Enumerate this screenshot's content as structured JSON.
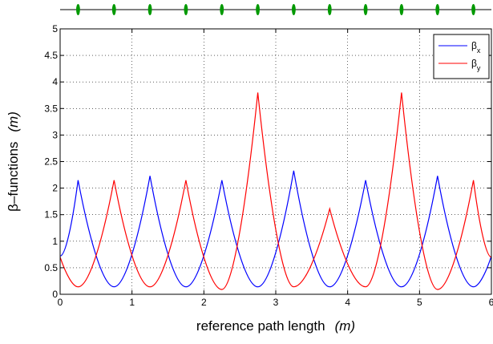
{
  "chart_data": {
    "type": "line",
    "title": "",
    "xlabel": "reference path length",
    "xlabel_unit": "(m)",
    "ylabel": "β–functions",
    "ylabel_unit": "(m)",
    "xlim": [
      0,
      6
    ],
    "ylim": [
      0,
      5
    ],
    "xticks": [
      0,
      1,
      2,
      3,
      4,
      5,
      6
    ],
    "xtick_labels": [
      "0",
      "1",
      "2",
      "3",
      "4",
      "5",
      "6"
    ],
    "yticks": [
      0,
      0.5,
      1,
      1.5,
      2,
      2.5,
      3,
      3.5,
      4,
      4.5,
      5
    ],
    "ytick_labels": [
      "0",
      "0.5",
      "1",
      "1.5",
      "2",
      "2.5",
      "3",
      "3.5",
      "4",
      "4.5",
      "5"
    ],
    "grid": true,
    "legend_position": "top-right",
    "series": [
      {
        "name": "βx",
        "legend_base": "β",
        "legend_sub": "x",
        "color": "#0000ff",
        "x": [
          0,
          0.25,
          0.75,
          1.25,
          1.75,
          2.25,
          2.75,
          3.25,
          3.75,
          4.25,
          4.75,
          5.25,
          5.75,
          6
        ],
        "y": [
          0.72,
          2.15,
          0.14,
          2.23,
          0.14,
          2.15,
          0.14,
          2.33,
          0.14,
          2.15,
          0.14,
          2.23,
          0.14,
          0.72
        ]
      },
      {
        "name": "βy",
        "legend_base": "β",
        "legend_sub": "y",
        "color": "#ff0000",
        "x": [
          0,
          0.25,
          0.75,
          1.25,
          1.75,
          2.25,
          2.75,
          3.25,
          3.75,
          4.25,
          4.75,
          5.25,
          5.75,
          6
        ],
        "y": [
          0.7,
          0.14,
          2.15,
          0.14,
          2.15,
          0.09,
          3.8,
          0.14,
          1.61,
          0.14,
          3.8,
          0.09,
          2.15,
          0.7
        ]
      }
    ],
    "lattice_elements": {
      "color": "#009900",
      "positions": [
        0.25,
        0.75,
        1.25,
        1.75,
        2.25,
        2.75,
        3.25,
        3.75,
        4.25,
        4.75,
        5.25,
        5.75
      ]
    }
  }
}
